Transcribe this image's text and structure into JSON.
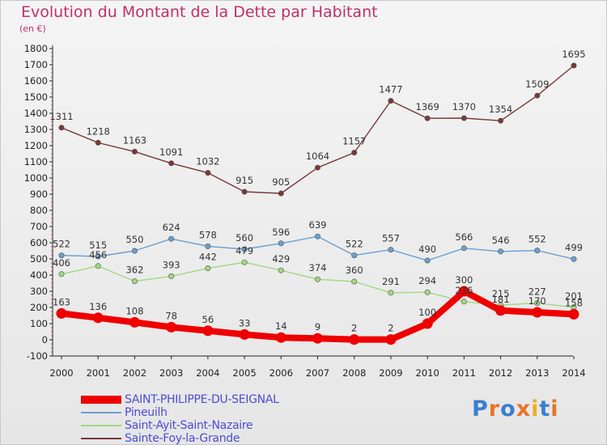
{
  "title": "Evolution du Montant de la Dette par Habitant",
  "unit_label": "(en €)",
  "logo": {
    "text": "Proxiti",
    "letters": [
      "P",
      "r",
      "o",
      "x",
      "i",
      "t",
      "i"
    ],
    "colors": [
      "#3a7fd0",
      "#e8732a",
      "#3a7fd0",
      "#e8732a",
      "#e8b020",
      "#3a7fd0",
      "#e8732a"
    ]
  },
  "chart_data": {
    "type": "line",
    "x": [
      "2000",
      "2001",
      "2002",
      "2003",
      "2004",
      "2005",
      "2006",
      "2007",
      "2008",
      "2009",
      "2010",
      "2011",
      "2012",
      "2013",
      "2014"
    ],
    "ylim": [
      -100,
      1800
    ],
    "yticks": [
      "-100",
      "0",
      "100",
      "200",
      "300",
      "400",
      "500",
      "600",
      "700",
      "800",
      "900",
      "1000",
      "1100",
      "1200",
      "1300",
      "1400",
      "1500",
      "1600",
      "1700",
      "1800"
    ],
    "grid": false,
    "legend_position": "bottom-left",
    "series": [
      {
        "name": "SAINT-PHILIPPE-DU-SEIGNAL",
        "color": "#ee0000",
        "emphasis": true,
        "values": [
          163,
          136,
          108,
          78,
          56,
          33,
          14,
          9,
          2,
          2,
          100,
          300,
          181,
          170,
          158
        ],
        "labels": [
          "163",
          "136",
          "108",
          "78",
          "56",
          "33",
          "14",
          "9",
          "2",
          "2",
          "100",
          "300",
          "181",
          "170",
          "158"
        ]
      },
      {
        "name": "Pineuilh",
        "color": "#6aa0d0",
        "emphasis": false,
        "values": [
          522,
          515,
          550,
          624,
          578,
          560,
          596,
          639,
          522,
          557,
          490,
          566,
          546,
          552,
          499
        ],
        "labels": [
          "522",
          "515",
          "550",
          "624",
          "578",
          "560",
          "596",
          "639",
          "522",
          "557",
          "490",
          "566",
          "546",
          "552",
          "499"
        ]
      },
      {
        "name": "Saint-Ayit-Saint-Nazaire",
        "color": "#a0d880",
        "emphasis": false,
        "values": [
          406,
          456,
          362,
          393,
          442,
          479,
          429,
          374,
          360,
          291,
          294,
          236,
          215,
          227,
          201
        ],
        "labels": [
          "406",
          "456",
          "362",
          "393",
          "442",
          "479",
          "429",
          "374",
          "360",
          "291",
          "294",
          "236",
          "215",
          "227",
          "201"
        ]
      },
      {
        "name": "Sainte-Foy-la-Grande",
        "color": "#7a3838",
        "emphasis": false,
        "values": [
          1311,
          1218,
          1163,
          1091,
          1032,
          915,
          905,
          1064,
          1157,
          1477,
          1369,
          1370,
          1354,
          1509,
          1695
        ],
        "labels": [
          "1311",
          "1218",
          "1163",
          "1091",
          "1032",
          "915",
          "905",
          "1064",
          "1157",
          "1477",
          "1369",
          "1370",
          "1354",
          "1509",
          "1695"
        ]
      }
    ]
  }
}
